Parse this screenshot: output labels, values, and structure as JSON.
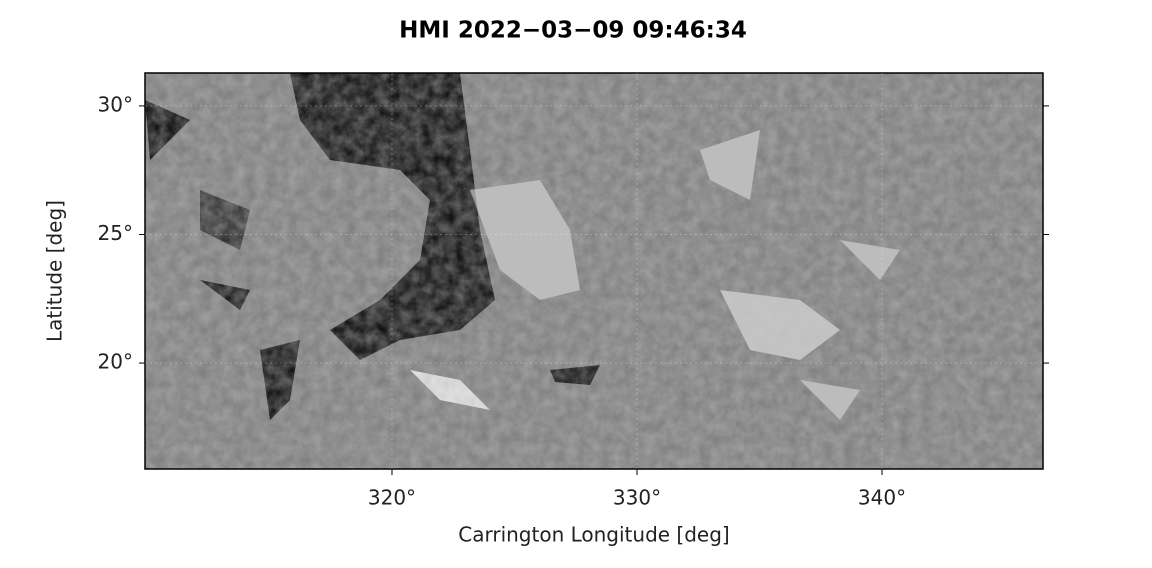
{
  "chart_data": {
    "type": "image",
    "title": "HMI 2022−03−09 09:46:34",
    "x_label": "Carrington Longitude [deg]",
    "y_label": "Latitude [deg]",
    "xlim": [
      309.92,
      346.57
    ],
    "ylim": [
      15.88,
      31.28
    ],
    "xticks": [
      {
        "value": 320,
        "label": "320°"
      },
      {
        "value": 330,
        "label": "330°"
      },
      {
        "value": 340,
        "label": "340°"
      }
    ],
    "yticks": [
      {
        "value": 20,
        "label": "20°"
      },
      {
        "value": 25,
        "label": "25°"
      },
      {
        "value": 30,
        "label": "30°"
      }
    ],
    "grid": true
  }
}
